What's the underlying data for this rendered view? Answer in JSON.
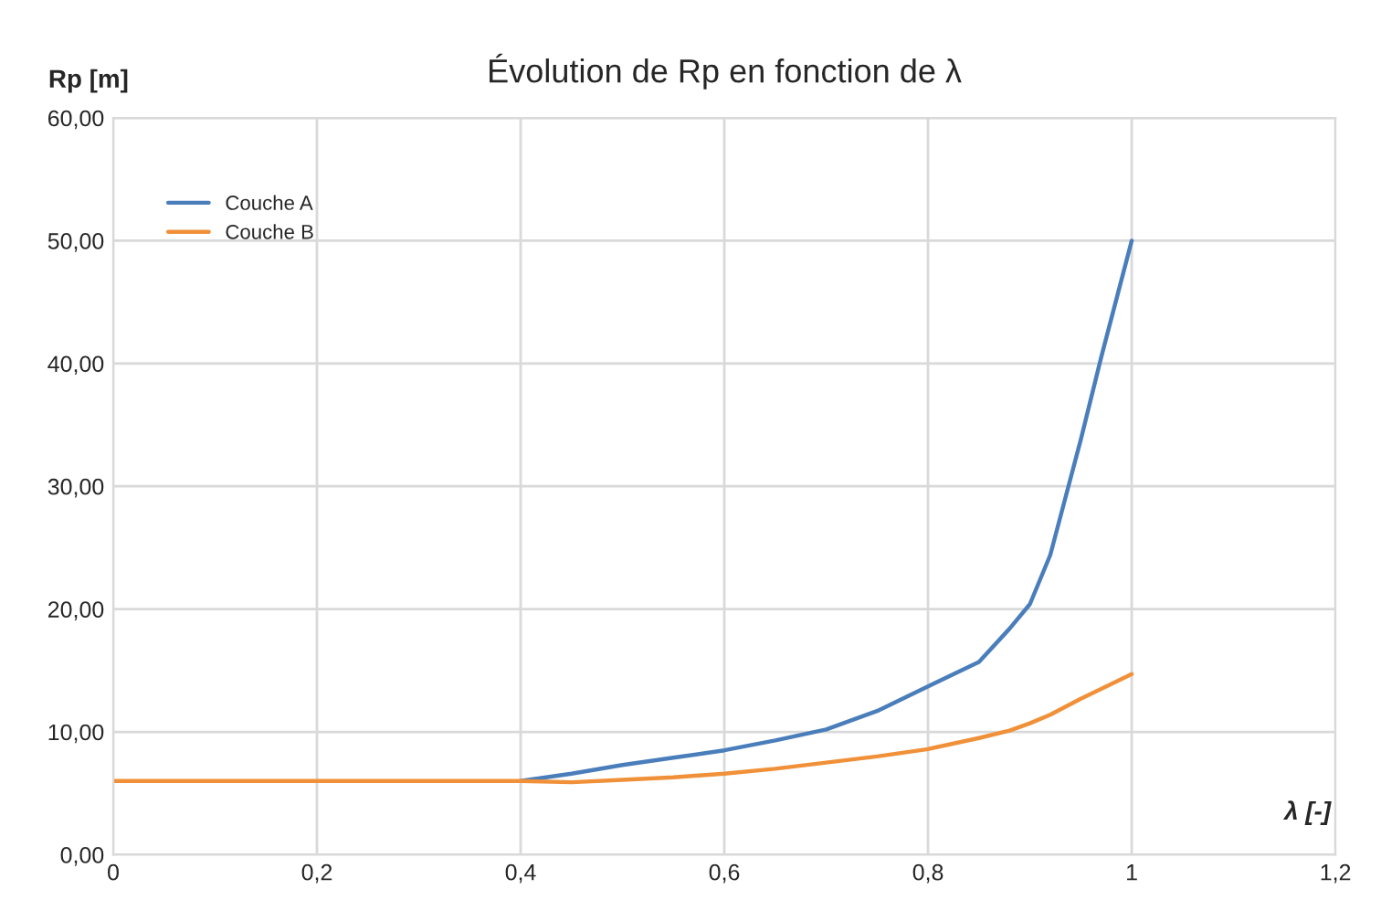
{
  "chart_data": {
    "type": "line",
    "title": "Évolution de Rp en fonction de λ",
    "xlabel": "λ [-]",
    "ylabel": "Rp [m]",
    "x": [
      0,
      0.1,
      0.2,
      0.3,
      0.4,
      0.45,
      0.5,
      0.55,
      0.6,
      0.65,
      0.7,
      0.75,
      0.8,
      0.85,
      0.88,
      0.9,
      0.92,
      0.95,
      0.97,
      1.0
    ],
    "series": [
      {
        "name": "Couche A",
        "color": "#4a7ebb",
        "values": [
          null,
          null,
          null,
          null,
          6.0,
          6.6,
          7.3,
          7.9,
          8.5,
          9.3,
          10.2,
          11.7,
          13.7,
          15.7,
          18.4,
          20.4,
          24.4,
          33.8,
          40.5,
          50.0
        ]
      },
      {
        "name": "Couche B",
        "color": "#f0913a",
        "values": [
          6.0,
          6.0,
          6.0,
          6.0,
          6.0,
          5.9,
          6.1,
          6.3,
          6.6,
          7.0,
          7.5,
          8.0,
          8.6,
          9.5,
          10.1,
          10.7,
          11.4,
          12.7,
          13.5,
          14.7
        ]
      }
    ],
    "xlim": [
      0,
      1.2
    ],
    "xticks": [
      0,
      {
        "value": 0.2,
        "label": "0,2"
      },
      {
        "value": 0.4,
        "label": "0,4"
      },
      {
        "value": 0.6,
        "label": "0,6"
      },
      {
        "value": 0.8,
        "label": "0,8"
      },
      {
        "value": 1,
        "label": "1"
      },
      {
        "value": 1.2,
        "label": "1,2"
      }
    ],
    "ylim": [
      0,
      60
    ],
    "yticks": [
      {
        "value": 0,
        "label": "0,00"
      },
      {
        "value": 10,
        "label": "10,00"
      },
      {
        "value": 20,
        "label": "20,00"
      },
      {
        "value": 30,
        "label": "30,00"
      },
      {
        "value": 40,
        "label": "40,00"
      },
      {
        "value": 50,
        "label": "50,00"
      },
      {
        "value": 60,
        "label": "60,00"
      }
    ],
    "grid": true,
    "legend": "top left",
    "line_style": "solid",
    "marker": "none"
  }
}
